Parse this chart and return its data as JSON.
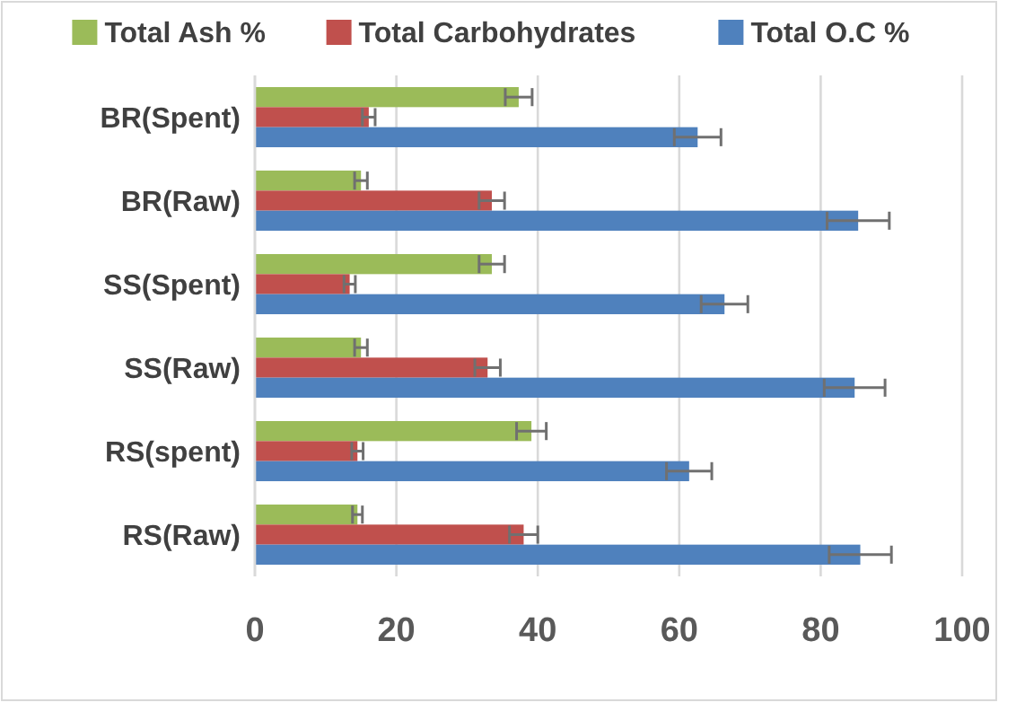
{
  "chart_data": {
    "type": "bar",
    "orientation": "horizontal",
    "categories": [
      "BR(Spent)",
      "BR(Raw)",
      "SS(Spent)",
      "SS(Raw)",
      "RS(spent)",
      "RS(Raw)"
    ],
    "series": [
      {
        "name": "Total Ash %",
        "color": "#9bbb59",
        "values": [
          37.3,
          15.0,
          33.5,
          15.0,
          39.1,
          14.5
        ],
        "errors": [
          1.9,
          0.9,
          1.8,
          0.9,
          2.1,
          0.7
        ]
      },
      {
        "name": "Total Carbohydrates",
        "color": "#c0504d",
        "values": [
          16.1,
          33.5,
          13.4,
          32.9,
          14.5,
          38.0
        ],
        "errors": [
          0.9,
          1.8,
          0.8,
          1.8,
          0.8,
          2.0
        ]
      },
      {
        "name": "Total O.C %",
        "color": "#4f81bd",
        "values": [
          62.6,
          85.3,
          66.4,
          84.8,
          61.4,
          85.6
        ],
        "errors": [
          3.3,
          4.4,
          3.3,
          4.3,
          3.2,
          4.4
        ]
      }
    ],
    "xlim": [
      0,
      100
    ],
    "xticks": [
      0,
      20,
      40,
      60,
      80,
      100
    ],
    "grid": "x",
    "legend": "top"
  }
}
